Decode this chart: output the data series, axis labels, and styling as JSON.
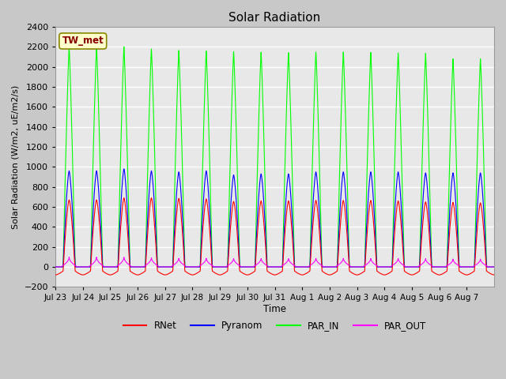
{
  "title": "Solar Radiation",
  "ylabel": "Solar Radiation (W/m2, uE/m2/s)",
  "xlabel": "Time",
  "ylim": [
    -200,
    2400
  ],
  "yticks": [
    -200,
    0,
    200,
    400,
    600,
    800,
    1000,
    1200,
    1400,
    1600,
    1800,
    2000,
    2200,
    2400
  ],
  "fig_bg_color": "#c8c8c8",
  "plot_bg_color": "#e8e8e8",
  "grid_color": "#ffffff",
  "annotation_text": "TW_met",
  "annotation_bg": "#ffffcc",
  "annotation_border": "#888800",
  "annotation_text_color": "#880000",
  "series_colors": {
    "RNet": "#ff0000",
    "Pyranom": "#0000ff",
    "PAR_IN": "#00ff00",
    "PAR_OUT": "#ff00ff"
  },
  "xtick_labels": [
    "Jul 23",
    "Jul 24",
    "Jul 25",
    "Jul 26",
    "Jul 27",
    "Jul 28",
    "Jul 29",
    "Jul 30",
    "Jul 31",
    "Aug 1",
    "Aug 2",
    "Aug 3",
    "Aug 4",
    "Aug 5",
    "Aug 6",
    "Aug 7"
  ],
  "n_days": 16,
  "legend_entries": [
    "RNet",
    "Pyranom",
    "PAR_IN",
    "PAR_OUT"
  ],
  "legend_colors": [
    "#ff0000",
    "#0000ff",
    "#00ff00",
    "#ff00ff"
  ],
  "par_in_peaks": [
    2200,
    2200,
    2200,
    2180,
    2165,
    2160,
    2155,
    2150,
    2145,
    2150,
    2150,
    2145,
    2140,
    2135,
    2080,
    2080
  ],
  "pyranom_peaks": [
    960,
    960,
    980,
    960,
    950,
    960,
    920,
    930,
    930,
    950,
    950,
    950,
    950,
    940,
    940,
    940
  ],
  "rnet_peaks": [
    670,
    670,
    690,
    690,
    685,
    680,
    655,
    660,
    660,
    665,
    665,
    665,
    660,
    650,
    645,
    640
  ],
  "par_out_peaks": [
    100,
    100,
    100,
    95,
    90,
    90,
    88,
    88,
    88,
    90,
    90,
    88,
    88,
    85,
    80,
    80
  ]
}
